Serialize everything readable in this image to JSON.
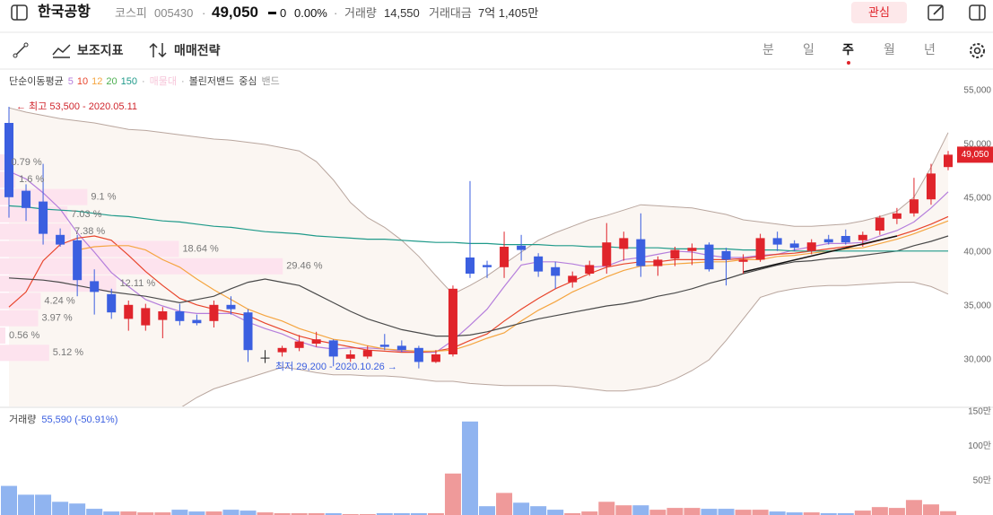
{
  "header": {
    "name": "한국공항",
    "market": "코스피",
    "code": "005430",
    "price": "49,050",
    "change": "0",
    "change_rate": "0.00%",
    "volume_label": "거래량",
    "volume": "14,550",
    "amount_label": "거래대금",
    "amount": "7억 1,405만",
    "watch_button": "관심"
  },
  "toolbar": {
    "indicators": "보조지표",
    "strategy": "매매전략",
    "periods": [
      "분",
      "일",
      "주",
      "월",
      "년"
    ],
    "selected": "주"
  },
  "legend": {
    "ma_title": "단순이동평균",
    "profile": "매물대",
    "bollinger": "볼린저밴드",
    "center": "중심",
    "band": "밴드"
  },
  "chart_data": {
    "type": "candlestick",
    "open": [
      52000,
      45700,
      44700,
      41600,
      41100,
      37300,
      36100,
      33800,
      33200,
      33700,
      34500,
      33700,
      33600,
      35100,
      34400,
      30200,
      30700,
      31100,
      31500,
      31800,
      30100,
      30300,
      31400,
      31300,
      31100,
      29800,
      30500,
      39500,
      38800,
      38600,
      40600,
      39600,
      38600,
      37200,
      38000,
      38700,
      40300,
      41200,
      38700,
      39400,
      40100,
      40700,
      40100,
      39100,
      39300,
      41300,
      40800,
      40100,
      41200,
      41500,
      41100,
      42000,
      43100,
      43600,
      44900,
      47900
    ],
    "high": [
      53500,
      46300,
      48200,
      42200,
      41600,
      38400,
      36600,
      35500,
      35200,
      34900,
      35200,
      34200,
      35500,
      35900,
      34700,
      30900,
      31300,
      32300,
      32600,
      31900,
      30900,
      31300,
      32400,
      31800,
      31300,
      30900,
      36900,
      46600,
      39200,
      41900,
      41600,
      39900,
      39100,
      38200,
      39200,
      42700,
      41900,
      43600,
      39600,
      40500,
      40800,
      40900,
      40400,
      39800,
      41700,
      41900,
      41100,
      41200,
      41600,
      42100,
      41900,
      43400,
      44100,
      46900,
      48200,
      49400
    ],
    "low": [
      43200,
      42900,
      40700,
      40500,
      35900,
      34200,
      33800,
      32700,
      32700,
      32000,
      33200,
      33200,
      33000,
      34200,
      29800,
      29700,
      30300,
      30800,
      31200,
      29400,
      29800,
      30100,
      30900,
      30700,
      29200,
      29700,
      30300,
      37600,
      37600,
      37600,
      39200,
      37700,
      36600,
      36700,
      37800,
      38000,
      39200,
      37700,
      37800,
      38700,
      38800,
      38200,
      36900,
      38000,
      39100,
      40100,
      40100,
      39800,
      40700,
      40700,
      40500,
      41600,
      42600,
      43300,
      44400,
      47600
    ],
    "close": [
      45100,
      44100,
      41700,
      40700,
      37400,
      36300,
      34400,
      35100,
      34800,
      34500,
      33600,
      33400,
      35100,
      34700,
      30900,
      30200,
      31100,
      31700,
      31900,
      30300,
      30500,
      30900,
      31200,
      30900,
      29800,
      30500,
      36600,
      38000,
      38600,
      40500,
      40200,
      38200,
      37800,
      37800,
      38800,
      40900,
      41300,
      38700,
      39300,
      40200,
      40400,
      38400,
      39300,
      39300,
      41300,
      40700,
      40400,
      40900,
      40900,
      40900,
      41600,
      43200,
      43600,
      44900,
      47300,
      49050
    ],
    "up_color": "#e0242b",
    "down_color": "#3b5fe0",
    "flat_color": "#222222",
    "ylim": [
      25667,
      57000
    ],
    "yticks": [
      {
        "value": 30000,
        "label": "30,000"
      },
      {
        "value": 35000,
        "label": "35,000"
      },
      {
        "value": 40000,
        "label": "40,000"
      },
      {
        "value": 45000,
        "label": "45,000"
      },
      {
        "value": 50000,
        "label": "50,000"
      },
      {
        "value": 55000,
        "label": "55,000"
      }
    ],
    "last_label": "49,050",
    "moving_averages": [
      {
        "name": "5",
        "color": "#b57edc",
        "values": [
          47500,
          46800,
          45500,
          44000,
          41800,
          40000,
          38100,
          36800,
          35600,
          35000,
          34500,
          34300,
          34300,
          34300,
          33500,
          32900,
          32400,
          31700,
          31200,
          31000,
          31100,
          31100,
          31000,
          30800,
          30700,
          30700,
          31800,
          33200,
          34700,
          36800,
          38800,
          39100,
          39100,
          38900,
          38600,
          38700,
          39300,
          39500,
          39800,
          40100,
          40000,
          39700,
          39500,
          39500,
          39700,
          39800,
          40200,
          40500,
          40800,
          40800,
          40900,
          41500,
          42000,
          42800,
          44100,
          45600
        ]
      },
      {
        "name": "10",
        "color": "#e8452c",
        "values": [
          34900,
          36300,
          39200,
          40700,
          41300,
          41500,
          41100,
          39700,
          38200,
          36900,
          35700,
          35100,
          34700,
          34400,
          34100,
          33400,
          32800,
          32200,
          31800,
          31500,
          31200,
          30900,
          30800,
          30700,
          30700,
          30800,
          31100,
          31800,
          32400,
          33600,
          34700,
          35700,
          36600,
          37300,
          38000,
          38600,
          38900,
          39100,
          39100,
          39300,
          39300,
          39300,
          39300,
          39400,
          39600,
          39800,
          39900,
          40100,
          40300,
          40500,
          40700,
          41100,
          41500,
          42000,
          42600,
          43300
        ]
      },
      {
        "name": "12",
        "color": "#f5a540",
        "values": [
          null,
          null,
          null,
          null,
          40200,
          40500,
          40600,
          40600,
          40200,
          39300,
          38600,
          37500,
          36500,
          35600,
          34700,
          34100,
          33600,
          32900,
          32400,
          31900,
          31700,
          31300,
          31000,
          30900,
          30800,
          30800,
          30900,
          31400,
          32000,
          32500,
          33600,
          34600,
          35400,
          36300,
          37000,
          37700,
          38300,
          38700,
          38800,
          38900,
          39000,
          39100,
          39100,
          39300,
          39300,
          39600,
          39700,
          39900,
          40100,
          40300,
          40400,
          40800,
          41200,
          41700,
          42300,
          42900
        ]
      },
      {
        "name": "20",
        "color": "#4a4a4a",
        "label_color": "#4caf50",
        "values": [
          37600,
          37500,
          37400,
          37200,
          36900,
          36600,
          36300,
          36100,
          35900,
          35600,
          35300,
          35600,
          35900,
          36600,
          37200,
          37500,
          37200,
          36900,
          36100,
          35300,
          34500,
          33800,
          33300,
          32800,
          32500,
          32200,
          32200,
          32300,
          32600,
          33000,
          33400,
          33800,
          34100,
          34400,
          34700,
          35000,
          35200,
          35500,
          35900,
          36200,
          36600,
          37100,
          37500,
          38000,
          38400,
          38800,
          39100,
          39200,
          39400,
          39500,
          39700,
          39900,
          40100,
          40600,
          41000,
          41500
        ]
      },
      {
        "name": "150",
        "color": "#1f9a8a",
        "values": [
          44300,
          44200,
          44000,
          43900,
          43800,
          43600,
          43400,
          43300,
          43100,
          42900,
          42800,
          42600,
          42400,
          42300,
          42100,
          41900,
          41800,
          41700,
          41500,
          41400,
          41300,
          41200,
          41200,
          41100,
          41000,
          40900,
          40900,
          40800,
          40800,
          40700,
          40700,
          40700,
          40600,
          40600,
          40500,
          40500,
          40400,
          40400,
          40400,
          40300,
          40300,
          40300,
          40300,
          40200,
          40200,
          40200,
          40100,
          40100,
          40100,
          40100,
          40100,
          40100,
          40100,
          40100,
          40100,
          40100
        ]
      }
    ],
    "bollinger": {
      "color": "#b9a69e",
      "fill": "#fbf6f2",
      "upper": [
        53400,
        53000,
        52700,
        52400,
        52200,
        52000,
        51700,
        51400,
        51300,
        51100,
        50900,
        50700,
        50500,
        50400,
        50200,
        50000,
        49700,
        49400,
        48400,
        46700,
        44600,
        43200,
        42300,
        41100,
        39600,
        37800,
        36100,
        36900,
        37800,
        38900,
        40000,
        41100,
        41800,
        42400,
        43000,
        43400,
        43900,
        44400,
        44300,
        44200,
        44100,
        43800,
        43500,
        43000,
        42800,
        42600,
        42400,
        42400,
        42500,
        42600,
        42900,
        43300,
        43800,
        45100,
        47900,
        51100
      ],
      "lower": [
        20500,
        21000,
        21500,
        22000,
        22500,
        23000,
        23500,
        24000,
        24500,
        25000,
        25500,
        26500,
        27300,
        27800,
        28300,
        28800,
        29300,
        29100,
        28800,
        28600,
        28600,
        28500,
        28500,
        28400,
        28200,
        28000,
        28000,
        27800,
        27700,
        27600,
        27600,
        27600,
        27600,
        27500,
        27300,
        27100,
        27100,
        27300,
        27600,
        28200,
        29000,
        30000,
        31800,
        33800,
        35800,
        36300,
        36600,
        36800,
        36900,
        36900,
        37000,
        37100,
        37200,
        37200,
        36800,
        36100
      ]
    },
    "volume_profile": {
      "color": "#fde3ee",
      "values": [
        0.79,
        1.6,
        9.1,
        7.03,
        7.38,
        18.64,
        29.46,
        12.11,
        4.24,
        3.97,
        0.56,
        5.12
      ],
      "value_labels": [
        "0.79 %",
        "1.6 %",
        "9.1 %",
        "7.03 %",
        "7.38 %",
        "18.64 %",
        "29.46 %",
        "12.11 %",
        "4.24 %",
        "3.97 %",
        "0.56 %",
        "5.12 %"
      ]
    },
    "annotations": {
      "high": "← 최고 53,500 - 2020.05.11",
      "low": "최저 29,200 - 2020.10.26 →"
    },
    "volume": {
      "title": "거래량",
      "summary": "55,590 (-50.91%)",
      "up_color": "#ef9a9a",
      "down_color": "#90b4f0",
      "values": [
        423000,
        295000,
        295000,
        192000,
        167000,
        90000,
        51000,
        51000,
        38000,
        38000,
        77000,
        51000,
        51000,
        77000,
        64000,
        38000,
        26000,
        26000,
        26000,
        26000,
        13000,
        13000,
        26000,
        26000,
        26000,
        26000,
        603000,
        1359000,
        128000,
        321000,
        179000,
        128000,
        77000,
        26000,
        51000,
        192000,
        141000,
        141000,
        77000,
        103000,
        103000,
        90000,
        90000,
        77000,
        77000,
        51000,
        38000,
        38000,
        26000,
        26000,
        64000,
        115000,
        103000,
        218000,
        154000,
        55590
      ],
      "ylim": [
        0,
        1552000
      ],
      "yticks": [
        {
          "value": 500000,
          "label": "50만"
        },
        {
          "value": 1000000,
          "label": "100만"
        },
        {
          "value": 1500000,
          "label": "150만"
        }
      ]
    }
  }
}
